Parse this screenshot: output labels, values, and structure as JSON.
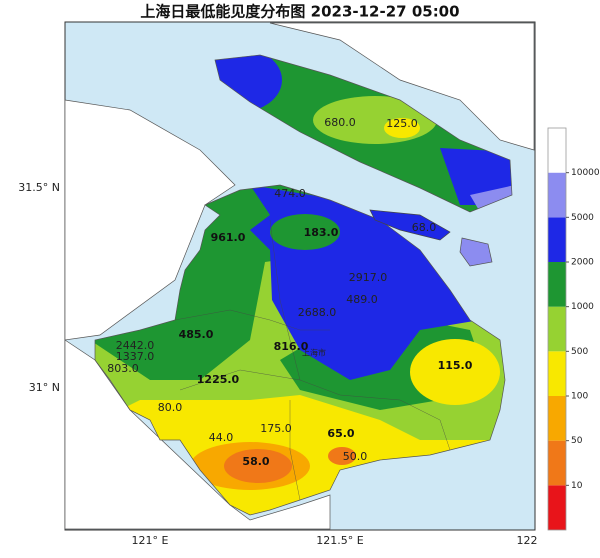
{
  "header": {
    "title": "上海日最低能见度分布图 2023-12-27 05:00"
  },
  "axes": {
    "y_labels": [
      "31.5° N",
      "31° N"
    ],
    "x_labels": [
      "121° E",
      "121.5° E",
      "122"
    ]
  },
  "map": {
    "place_label": "上海市",
    "stations": [
      "680.0",
      "125.0",
      "474.0",
      "961.0",
      "183.0",
      "68.0",
      "2917.0",
      "489.0",
      "2688.0",
      "485.0",
      "816.0",
      "2442.0",
      "1337.0",
      "803.0",
      "1225.0",
      "115.0",
      "80.0",
      "175.0",
      "44.0",
      "65.0",
      "58.0",
      "50.0"
    ]
  },
  "colorbar": {
    "ticks": [
      10,
      50,
      100,
      500,
      1000,
      2000,
      5000,
      10000
    ],
    "colors": [
      "#e8141a",
      "#f07818",
      "#f8a800",
      "#f8e800",
      "#96d232",
      "#1e9632",
      "#1e28e6",
      "#8c8cf0",
      "#ffffff"
    ]
  }
}
